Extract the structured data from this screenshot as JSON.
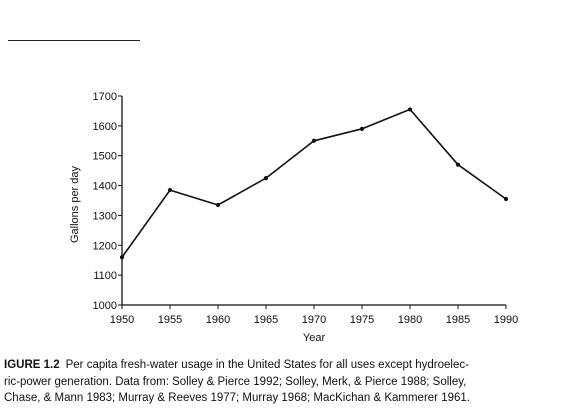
{
  "chart_data": {
    "type": "line",
    "title": "",
    "xlabel": "Year",
    "ylabel": "Gallons per day",
    "x": [
      1950,
      1955,
      1960,
      1965,
      1970,
      1975,
      1980,
      1985,
      1990
    ],
    "xticks": [
      "1950",
      "1955",
      "1960",
      "1965",
      "1970",
      "1975",
      "1980",
      "1985",
      "1990"
    ],
    "yticks": [
      "1000",
      "1100",
      "1200",
      "1300",
      "1400",
      "1500",
      "1600",
      "1700"
    ],
    "xlim": [
      1950,
      1990
    ],
    "ylim": [
      1000,
      1700
    ],
    "series": [
      {
        "values": [
          1160,
          1385,
          1335,
          1425,
          1550,
          1590,
          1655,
          1470,
          1355
        ],
        "color": "#111111"
      }
    ],
    "grid": false,
    "legend": "none"
  },
  "caption": {
    "label": "IGURE 1.2",
    "lines": [
      "Per capita fresh-water usage in the United States for all uses except hydroelec-",
      "ric-power generation. Data from: Solley & Pierce 1992; Solley, Merk, & Pierce 1988; Solley,",
      "Chase, & Mann 1983; Murray & Reeves 1977; Murray 1968; MacKichan & Kammerer 1961."
    ]
  }
}
